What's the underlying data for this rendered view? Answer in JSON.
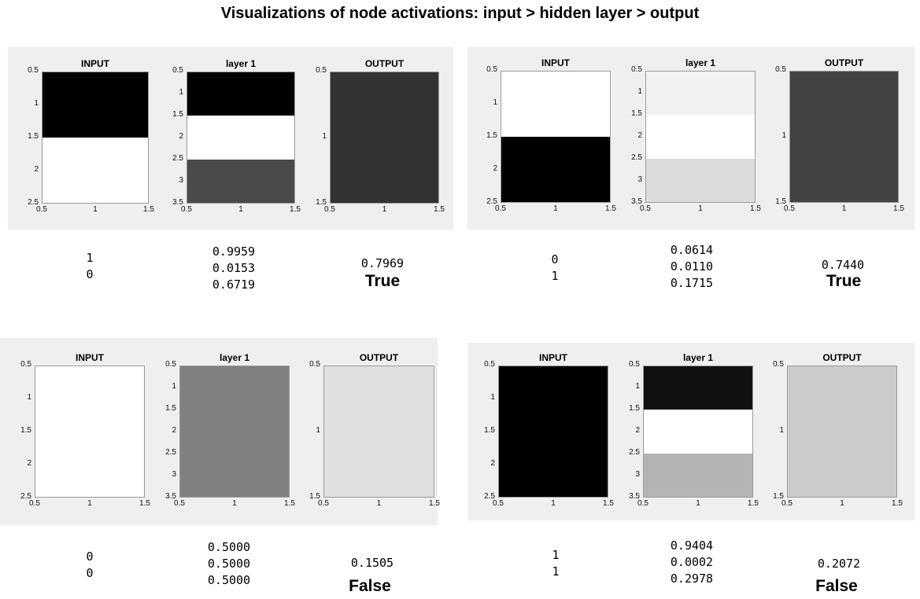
{
  "title": "Visualizations of node activations: input > hidden layer > output",
  "chart_data": [
    {
      "type": "heatmap",
      "panels": [
        {
          "title": "INPUT",
          "values": [
            1,
            0
          ],
          "gray": [
            "#000000",
            "#ffffff"
          ],
          "yticks": [
            "0.5",
            "1",
            "1.5",
            "2",
            "2.5"
          ],
          "xticks": [
            "0.5",
            "1",
            "1.5"
          ],
          "ylim": [
            0.5,
            2.5
          ],
          "xlim": [
            0.5,
            1.5
          ]
        },
        {
          "title": "layer 1",
          "values": [
            0.9959,
            0.0153,
            0.6719
          ],
          "gray": [
            "#000000",
            "#ffffff",
            "#4a4a4a"
          ],
          "yticks": [
            "0.5",
            "1",
            "1.5",
            "2",
            "2.5",
            "3",
            "3.5"
          ],
          "xticks": [
            "0.5",
            "1",
            "1.5"
          ],
          "ylim": [
            0.5,
            3.5
          ],
          "xlim": [
            0.5,
            1.5
          ]
        },
        {
          "title": "OUTPUT",
          "values": [
            0.7969
          ],
          "gray": [
            "#333333"
          ],
          "yticks": [
            "0.5",
            "1",
            "1.5"
          ],
          "xticks": [
            "0.5",
            "1",
            "1.5"
          ],
          "ylim": [
            0.5,
            1.5
          ],
          "xlim": [
            0.5,
            1.5
          ]
        }
      ],
      "input_text": [
        "1",
        "0"
      ],
      "hidden_text": [
        "0.9959",
        "0.0153",
        "0.6719"
      ],
      "output_text": "0.7969",
      "verdict": "True"
    },
    {
      "type": "heatmap",
      "panels": [
        {
          "title": "INPUT",
          "values": [
            0,
            1
          ],
          "gray": [
            "#ffffff",
            "#000000"
          ],
          "yticks": [
            "0.5",
            "1",
            "1.5",
            "2",
            "2.5"
          ],
          "xticks": [
            "0.5",
            "1",
            "1.5"
          ],
          "ylim": [
            0.5,
            2.5
          ],
          "xlim": [
            0.5,
            1.5
          ]
        },
        {
          "title": "layer 1",
          "values": [
            0.0614,
            0.011,
            0.1715
          ],
          "gray": [
            "#f2f2f2",
            "#ffffff",
            "#dcdcdc"
          ],
          "yticks": [
            "0.5",
            "1",
            "1.5",
            "2",
            "2.5",
            "3",
            "3.5"
          ],
          "xticks": [
            "0.5",
            "1",
            "1.5"
          ],
          "ylim": [
            0.5,
            3.5
          ],
          "xlim": [
            0.5,
            1.5
          ]
        },
        {
          "title": "OUTPUT",
          "values": [
            0.744
          ],
          "gray": [
            "#424242"
          ],
          "yticks": [
            "0.5",
            "1",
            "1.5"
          ],
          "xticks": [
            "0.5",
            "1",
            "1.5"
          ],
          "ylim": [
            0.5,
            1.5
          ],
          "xlim": [
            0.5,
            1.5
          ]
        }
      ],
      "input_text": [
        "0",
        "1"
      ],
      "hidden_text": [
        "0.0614",
        "0.0110",
        "0.1715"
      ],
      "output_text": "0.7440",
      "verdict": "True"
    },
    {
      "type": "heatmap",
      "panels": [
        {
          "title": "INPUT",
          "values": [
            0,
            0
          ],
          "gray": [
            "#ffffff",
            "#ffffff"
          ],
          "yticks": [
            "0.5",
            "1",
            "1.5",
            "2",
            "2.5"
          ],
          "xticks": [
            "0.5",
            "1",
            "1.5"
          ],
          "ylim": [
            0.5,
            2.5
          ],
          "xlim": [
            0.5,
            1.5
          ]
        },
        {
          "title": "layer 1",
          "values": [
            0.5,
            0.5,
            0.5
          ],
          "gray": [
            "#808080",
            "#808080",
            "#808080"
          ],
          "yticks": [
            "0.5",
            "1",
            "1.5",
            "2",
            "2.5",
            "3",
            "3.5"
          ],
          "xticks": [
            "0.5",
            "1",
            "1.5"
          ],
          "ylim": [
            0.5,
            3.5
          ],
          "xlim": [
            0.5,
            1.5
          ]
        },
        {
          "title": "OUTPUT",
          "values": [
            0.1505
          ],
          "gray": [
            "#e0e0e0"
          ],
          "yticks": [
            "0.5",
            "1",
            "1.5"
          ],
          "xticks": [
            "0.5",
            "1",
            "1.5"
          ],
          "ylim": [
            0.5,
            1.5
          ],
          "xlim": [
            0.5,
            1.5
          ]
        }
      ],
      "input_text": [
        "0",
        "0"
      ],
      "hidden_text": [
        "0.5000",
        "0.5000",
        "0.5000"
      ],
      "output_text": "0.1505",
      "verdict": "False"
    },
    {
      "type": "heatmap",
      "panels": [
        {
          "title": "INPUT",
          "values": [
            1,
            1
          ],
          "gray": [
            "#000000",
            "#000000"
          ],
          "yticks": [
            "0.5",
            "1",
            "1.5",
            "2",
            "2.5"
          ],
          "xticks": [
            "0.5",
            "1",
            "1.5"
          ],
          "ylim": [
            0.5,
            2.5
          ],
          "xlim": [
            0.5,
            1.5
          ]
        },
        {
          "title": "layer 1",
          "values": [
            0.9404,
            0.0002,
            0.2978
          ],
          "gray": [
            "#111111",
            "#ffffff",
            "#b4b4b4"
          ],
          "yticks": [
            "0.5",
            "1",
            "1.5",
            "2",
            "2.5",
            "3",
            "3.5"
          ],
          "xticks": [
            "0.5",
            "1",
            "1.5"
          ],
          "ylim": [
            0.5,
            3.5
          ],
          "xlim": [
            0.5,
            1.5
          ]
        },
        {
          "title": "OUTPUT",
          "values": [
            0.2072
          ],
          "gray": [
            "#cccccc"
          ],
          "yticks": [
            "0.5",
            "1",
            "1.5"
          ],
          "xticks": [
            "0.5",
            "1",
            "1.5"
          ],
          "ylim": [
            0.5,
            1.5
          ],
          "xlim": [
            0.5,
            1.5
          ]
        }
      ],
      "input_text": [
        "1",
        "1"
      ],
      "hidden_text": [
        "0.9404",
        "0.0002",
        "0.2978"
      ],
      "output_text": "0.2072",
      "verdict": "False"
    }
  ]
}
